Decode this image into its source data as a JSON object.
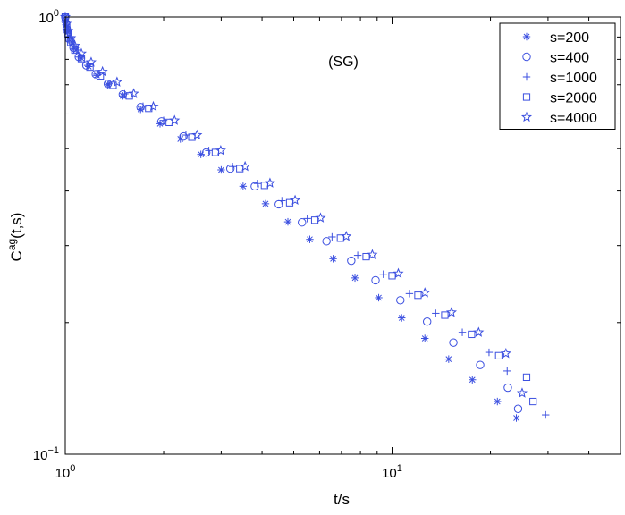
{
  "chart_data": {
    "type": "scatter",
    "title": "",
    "annotation": "(SG)",
    "xlabel": "t/s",
    "ylabel_base": "C",
    "ylabel_sup": "ag",
    "ylabel_args": "(t,s)",
    "xscale": "log",
    "yscale": "log",
    "xlim": [
      1,
      50
    ],
    "ylim": [
      0.1,
      1
    ],
    "grid": false,
    "legend_position": "top-right",
    "x_ticks": [
      {
        "value": 1,
        "base": "10",
        "exp": "0"
      },
      {
        "value": 10,
        "base": "10",
        "exp": "1"
      }
    ],
    "y_ticks": [
      {
        "value": 0.1,
        "base": "10",
        "exp": "−1"
      },
      {
        "value": 1,
        "base": "10",
        "exp": "0"
      }
    ],
    "marker_color": "#3b4fe0",
    "series": [
      {
        "name": "s=200",
        "marker": "asterisk",
        "points": [
          [
            1.0,
            1.0
          ],
          [
            1.005,
            0.975
          ],
          [
            1.01,
            0.95
          ],
          [
            1.02,
            0.925
          ],
          [
            1.03,
            0.9
          ],
          [
            1.05,
            0.872
          ],
          [
            1.08,
            0.84
          ],
          [
            1.12,
            0.805
          ],
          [
            1.18,
            0.77
          ],
          [
            1.25,
            0.735
          ],
          [
            1.35,
            0.7
          ],
          [
            1.5,
            0.66
          ],
          [
            1.7,
            0.615
          ],
          [
            1.95,
            0.57
          ],
          [
            2.25,
            0.526
          ],
          [
            2.6,
            0.485
          ],
          [
            3.0,
            0.447
          ],
          [
            3.5,
            0.41
          ],
          [
            4.1,
            0.374
          ],
          [
            4.8,
            0.34
          ],
          [
            5.6,
            0.31
          ],
          [
            6.6,
            0.28
          ],
          [
            7.7,
            0.253
          ],
          [
            9.1,
            0.228
          ],
          [
            10.7,
            0.205
          ],
          [
            12.6,
            0.184
          ],
          [
            14.9,
            0.165
          ],
          [
            17.6,
            0.148
          ],
          [
            21.0,
            0.132
          ],
          [
            24.0,
            0.121
          ]
        ]
      },
      {
        "name": "s=400",
        "marker": "circle",
        "points": [
          [
            1.0,
            1.0
          ],
          [
            1.01,
            0.94
          ],
          [
            1.03,
            0.89
          ],
          [
            1.06,
            0.85
          ],
          [
            1.1,
            0.81
          ],
          [
            1.16,
            0.775
          ],
          [
            1.24,
            0.74
          ],
          [
            1.35,
            0.703
          ],
          [
            1.5,
            0.665
          ],
          [
            1.7,
            0.622
          ],
          [
            1.97,
            0.577
          ],
          [
            2.3,
            0.533
          ],
          [
            2.7,
            0.49
          ],
          [
            3.2,
            0.45
          ],
          [
            3.8,
            0.41
          ],
          [
            4.5,
            0.373
          ],
          [
            5.3,
            0.339
          ],
          [
            6.3,
            0.307
          ],
          [
            7.5,
            0.277
          ],
          [
            8.9,
            0.25
          ],
          [
            10.6,
            0.225
          ],
          [
            12.8,
            0.201
          ],
          [
            15.4,
            0.18
          ],
          [
            18.6,
            0.16
          ],
          [
            22.6,
            0.142
          ],
          [
            24.3,
            0.127
          ]
        ]
      },
      {
        "name": "s=1000",
        "marker": "plus",
        "points": [
          [
            1.0,
            1.0
          ],
          [
            1.005,
            0.96
          ],
          [
            1.015,
            0.92
          ],
          [
            1.03,
            0.88
          ],
          [
            1.06,
            0.845
          ],
          [
            1.1,
            0.81
          ],
          [
            1.17,
            0.775
          ],
          [
            1.25,
            0.74
          ],
          [
            1.36,
            0.705
          ],
          [
            1.52,
            0.667
          ],
          [
            1.73,
            0.625
          ],
          [
            2.0,
            0.58
          ],
          [
            2.34,
            0.537
          ],
          [
            2.75,
            0.495
          ],
          [
            3.25,
            0.455
          ],
          [
            3.87,
            0.416
          ],
          [
            4.6,
            0.38
          ],
          [
            5.5,
            0.346
          ],
          [
            6.55,
            0.314
          ],
          [
            7.85,
            0.285
          ],
          [
            9.4,
            0.258
          ],
          [
            11.3,
            0.233
          ],
          [
            13.6,
            0.21
          ],
          [
            16.4,
            0.19
          ],
          [
            19.8,
            0.171
          ],
          [
            22.5,
            0.155
          ],
          [
            29.5,
            0.123
          ]
        ]
      },
      {
        "name": "s=2000",
        "marker": "square",
        "points": [
          [
            1.0,
            1.0
          ],
          [
            1.01,
            0.955
          ],
          [
            1.02,
            0.915
          ],
          [
            1.04,
            0.875
          ],
          [
            1.07,
            0.84
          ],
          [
            1.12,
            0.803
          ],
          [
            1.19,
            0.768
          ],
          [
            1.28,
            0.733
          ],
          [
            1.4,
            0.698
          ],
          [
            1.57,
            0.66
          ],
          [
            1.8,
            0.618
          ],
          [
            2.08,
            0.574
          ],
          [
            2.44,
            0.531
          ],
          [
            2.88,
            0.49
          ],
          [
            3.42,
            0.45
          ],
          [
            4.07,
            0.412
          ],
          [
            4.86,
            0.376
          ],
          [
            5.8,
            0.343
          ],
          [
            6.95,
            0.312
          ],
          [
            8.33,
            0.283
          ],
          [
            10.0,
            0.256
          ],
          [
            12.0,
            0.231
          ],
          [
            14.5,
            0.208
          ],
          [
            17.5,
            0.188
          ],
          [
            21.2,
            0.168
          ],
          [
            25.8,
            0.15
          ],
          [
            27.0,
            0.132
          ]
        ]
      },
      {
        "name": "s=4000",
        "marker": "star",
        "points": [
          [
            1.0,
            1.0
          ],
          [
            1.008,
            0.965
          ],
          [
            1.02,
            0.93
          ],
          [
            1.04,
            0.895
          ],
          [
            1.07,
            0.86
          ],
          [
            1.12,
            0.825
          ],
          [
            1.2,
            0.788
          ],
          [
            1.3,
            0.75
          ],
          [
            1.44,
            0.71
          ],
          [
            1.62,
            0.668
          ],
          [
            1.86,
            0.624
          ],
          [
            2.16,
            0.58
          ],
          [
            2.53,
            0.537
          ],
          [
            2.99,
            0.495
          ],
          [
            3.55,
            0.455
          ],
          [
            4.23,
            0.417
          ],
          [
            5.05,
            0.381
          ],
          [
            6.04,
            0.347
          ],
          [
            7.24,
            0.315
          ],
          [
            8.7,
            0.286
          ],
          [
            10.45,
            0.259
          ],
          [
            12.6,
            0.234
          ],
          [
            15.2,
            0.211
          ],
          [
            18.4,
            0.19
          ],
          [
            22.3,
            0.17
          ],
          [
            25.0,
            0.138
          ]
        ]
      }
    ]
  }
}
